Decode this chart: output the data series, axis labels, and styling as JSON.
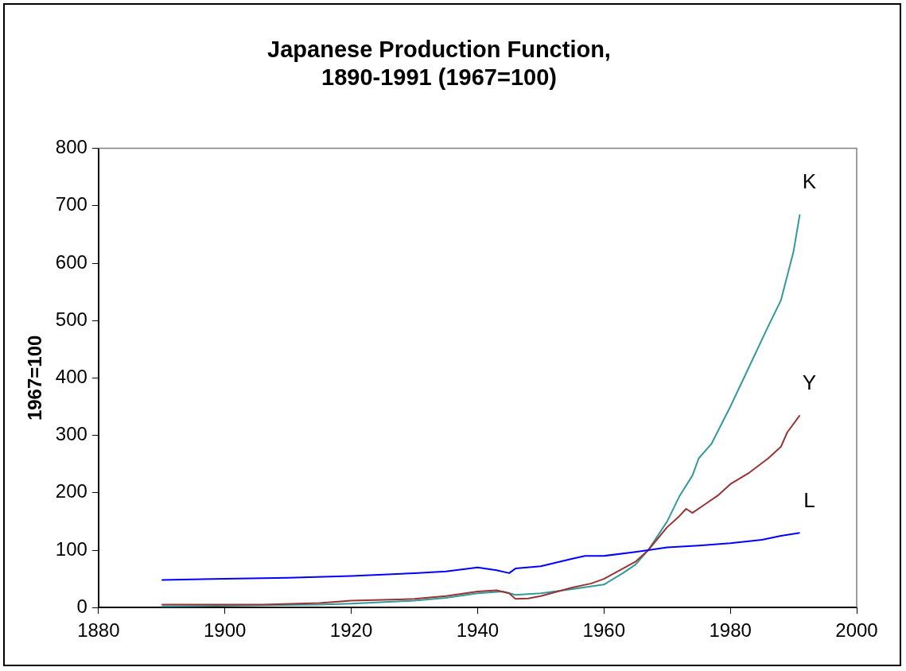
{
  "chart_data": {
    "type": "line",
    "title": "Japanese Production Function,\n1890-1991 (1967=100)",
    "ylabel": "1967=100",
    "xlim": [
      1880,
      2000
    ],
    "xticks": [
      1880,
      1900,
      1920,
      1940,
      1960,
      1980,
      2000
    ],
    "ylim": [
      0,
      800
    ],
    "yticks": [
      0,
      100,
      200,
      300,
      400,
      500,
      600,
      700,
      800
    ],
    "grid": false,
    "legend": false,
    "marker": "none",
    "line_style": "solid",
    "series": [
      {
        "name": "L",
        "color": "#0000ff",
        "x": [
          1890,
          1900,
          1910,
          1920,
          1930,
          1935,
          1940,
          1943,
          1945,
          1946,
          1950,
          1955,
          1957,
          1960,
          1965,
          1967,
          1970,
          1975,
          1980,
          1985,
          1988,
          1991
        ],
        "values": [
          48,
          50,
          52,
          55,
          60,
          63,
          70,
          65,
          60,
          68,
          72,
          85,
          90,
          90,
          97,
          100,
          105,
          108,
          112,
          118,
          125,
          130
        ]
      },
      {
        "name": "Y",
        "color": "#993333",
        "x": [
          1890,
          1906,
          1915,
          1920,
          1930,
          1935,
          1940,
          1943,
          1945,
          1946,
          1948,
          1950,
          1955,
          1958,
          1960,
          1963,
          1965,
          1967,
          1970,
          1972,
          1973,
          1974,
          1976,
          1978,
          1980,
          1983,
          1986,
          1988,
          1989,
          1991
        ],
        "values": [
          5,
          5,
          8,
          12,
          15,
          20,
          28,
          30,
          25,
          15,
          16,
          20,
          35,
          42,
          50,
          68,
          80,
          100,
          140,
          160,
          172,
          165,
          180,
          195,
          215,
          235,
          260,
          280,
          305,
          335
        ]
      },
      {
        "name": "K",
        "color": "#339999",
        "x": [
          1890,
          1906,
          1915,
          1920,
          1930,
          1935,
          1940,
          1944,
          1946,
          1950,
          1955,
          1958,
          1960,
          1963,
          1965,
          1967,
          1970,
          1972,
          1974,
          1975,
          1977,
          1980,
          1983,
          1986,
          1988,
          1990,
          1991
        ],
        "values": [
          2,
          4,
          5,
          7,
          12,
          17,
          25,
          28,
          22,
          25,
          32,
          37,
          40,
          60,
          75,
          100,
          150,
          195,
          230,
          260,
          285,
          350,
          420,
          490,
          535,
          620,
          685
        ]
      }
    ]
  }
}
